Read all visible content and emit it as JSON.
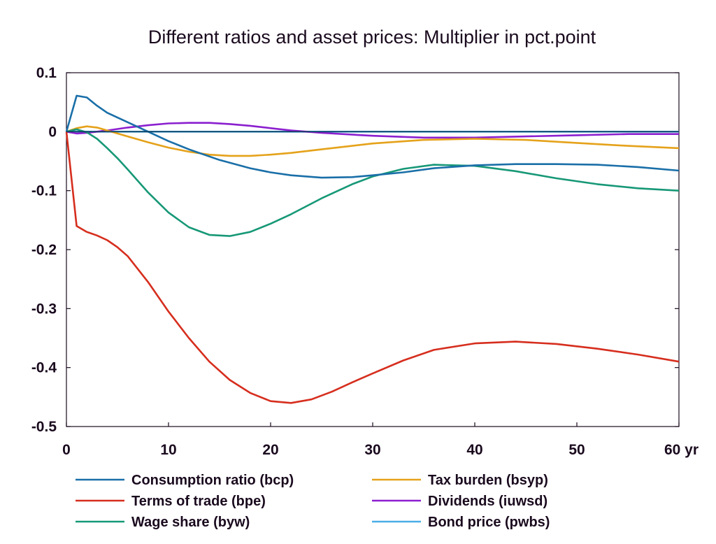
{
  "chart_data": {
    "type": "line",
    "title": "Different ratios and asset prices: Multiplier in pct.point",
    "xlabel": "",
    "ylabel": "",
    "xlim": [
      0,
      60
    ],
    "ylim": [
      -0.5,
      0.1
    ],
    "x_ticks": [
      0,
      10,
      20,
      30,
      40,
      50,
      60
    ],
    "x_tick_labels": [
      "0",
      "10",
      "20",
      "30",
      "40",
      "50",
      "60 yr"
    ],
    "y_ticks": [
      0.1,
      0,
      -0.1,
      -0.2,
      -0.3,
      -0.4,
      -0.5
    ],
    "y_tick_labels": [
      "0.1",
      "0",
      "-0.1",
      "-0.2",
      "-0.3",
      "-0.4",
      "-0.5"
    ],
    "grid": false,
    "legend_position": "bottom",
    "series": [
      {
        "name": "Consumption ratio (bcp)",
        "color": "#1a6fa8",
        "x": [
          0,
          1,
          2,
          3,
          4,
          5,
          6,
          8,
          10,
          12,
          15,
          18,
          20,
          22,
          25,
          28,
          30,
          33,
          36,
          40,
          44,
          48,
          52,
          56,
          60
        ],
        "y": [
          0,
          0.061,
          0.058,
          0.044,
          0.032,
          0.024,
          0.016,
          0.0,
          -0.016,
          -0.03,
          -0.048,
          -0.062,
          -0.069,
          -0.074,
          -0.078,
          -0.077,
          -0.074,
          -0.069,
          -0.062,
          -0.057,
          -0.055,
          -0.055,
          -0.056,
          -0.06,
          -0.066
        ]
      },
      {
        "name": "Terms of trade (bpe)",
        "color": "#d62e1e",
        "x": [
          0,
          1,
          2,
          3,
          4,
          5,
          6,
          8,
          10,
          12,
          14,
          16,
          18,
          20,
          22,
          24,
          26,
          28,
          30,
          33,
          36,
          40,
          44,
          48,
          52,
          56,
          60
        ],
        "y": [
          0,
          -0.16,
          -0.17,
          -0.176,
          -0.184,
          -0.196,
          -0.211,
          -0.255,
          -0.305,
          -0.35,
          -0.39,
          -0.421,
          -0.443,
          -0.457,
          -0.46,
          -0.454,
          -0.441,
          -0.425,
          -0.41,
          -0.388,
          -0.37,
          -0.359,
          -0.356,
          -0.36,
          -0.368,
          -0.378,
          -0.39
        ]
      },
      {
        "name": "Wage share (byw)",
        "color": "#179877",
        "x": [
          0,
          1,
          2,
          3,
          4,
          5,
          6,
          8,
          10,
          12,
          14,
          16,
          18,
          20,
          22,
          25,
          28,
          30,
          33,
          36,
          40,
          44,
          48,
          52,
          56,
          60
        ],
        "y": [
          0,
          0.004,
          -0.001,
          -0.012,
          -0.028,
          -0.045,
          -0.064,
          -0.103,
          -0.137,
          -0.162,
          -0.175,
          -0.177,
          -0.17,
          -0.156,
          -0.14,
          -0.113,
          -0.089,
          -0.076,
          -0.063,
          -0.056,
          -0.058,
          -0.067,
          -0.079,
          -0.089,
          -0.096,
          -0.1
        ]
      },
      {
        "name": "Tax burden (bsyp)",
        "color": "#e5a21a",
        "x": [
          0,
          1,
          2,
          3,
          4,
          6,
          8,
          10,
          12,
          14,
          16,
          18,
          20,
          22,
          25,
          28,
          30,
          35,
          40,
          45,
          50,
          55,
          60
        ],
        "y": [
          0,
          0.006,
          0.009,
          0.007,
          0.002,
          -0.008,
          -0.018,
          -0.027,
          -0.034,
          -0.039,
          -0.041,
          -0.041,
          -0.039,
          -0.036,
          -0.03,
          -0.024,
          -0.02,
          -0.014,
          -0.012,
          -0.014,
          -0.019,
          -0.024,
          -0.028
        ]
      },
      {
        "name": "Dividends (iuwsd)",
        "color": "#8b1fcf",
        "x": [
          0,
          1,
          2,
          4,
          6,
          8,
          10,
          12,
          14,
          16,
          18,
          20,
          22,
          25,
          30,
          35,
          40,
          45,
          50,
          55,
          60
        ],
        "y": [
          0,
          -0.003,
          -0.002,
          0.002,
          0.007,
          0.011,
          0.014,
          0.015,
          0.015,
          0.013,
          0.01,
          0.006,
          0.002,
          -0.002,
          -0.007,
          -0.01,
          -0.01,
          -0.008,
          -0.006,
          -0.004,
          -0.004
        ]
      },
      {
        "name": "Bond price (pwbs)",
        "color": "#4aaee8",
        "x": [
          0,
          10,
          20,
          30,
          40,
          50,
          60
        ],
        "y": [
          0,
          0,
          0,
          0,
          0,
          0,
          0
        ]
      }
    ]
  }
}
